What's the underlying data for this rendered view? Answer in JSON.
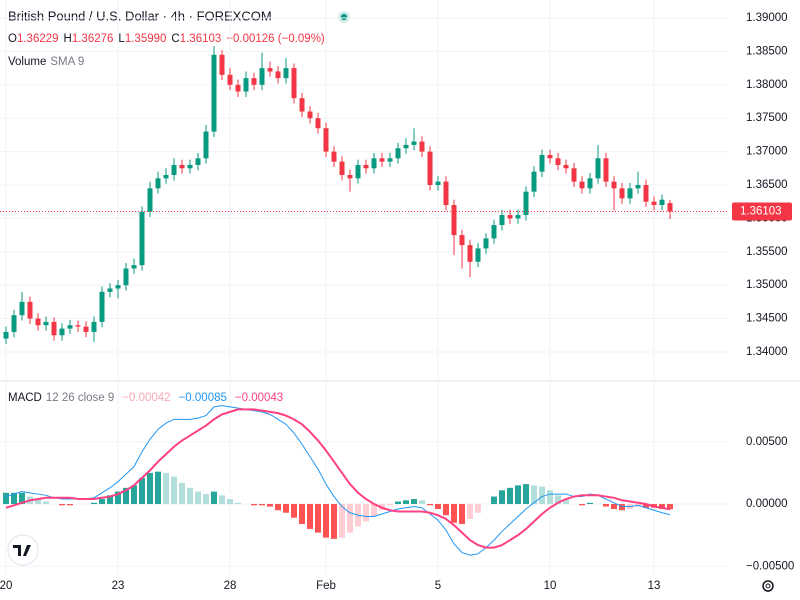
{
  "chart_data": [
    {
      "type": "candlestick",
      "title": "British Pound / U.S. Dollar · 4h · FOREXCOM",
      "ohlc": [
        {
          "key": "O",
          "value": "1.36229"
        },
        {
          "key": "H",
          "value": "1.36276"
        },
        {
          "key": "L",
          "value": "1.35990"
        },
        {
          "key": "C",
          "value": "1.36103"
        }
      ],
      "change": "−0.00126 (−0.09%)",
      "volume": {
        "name": "Volume",
        "params": "SMA 9"
      },
      "categories": [
        "20",
        null,
        null,
        null,
        null,
        null,
        null,
        null,
        null,
        null,
        null,
        null,
        null,
        null,
        "23",
        null,
        null,
        null,
        null,
        null,
        null,
        null,
        null,
        null,
        null,
        null,
        null,
        null,
        "28",
        null,
        null,
        null,
        null,
        null,
        null,
        null,
        null,
        null,
        null,
        null,
        "Feb",
        null,
        null,
        null,
        null,
        null,
        null,
        null,
        null,
        null,
        null,
        null,
        null,
        null,
        "5",
        null,
        null,
        null,
        null,
        null,
        null,
        null,
        null,
        null,
        null,
        null,
        null,
        null,
        "10",
        null,
        null,
        null,
        null,
        null,
        null,
        null,
        null,
        null,
        null,
        null,
        null,
        "13",
        null,
        null
      ],
      "open": [
        1.342,
        1.343,
        1.3455,
        1.3475,
        1.345,
        1.344,
        1.3445,
        1.3425,
        1.3435,
        1.344,
        1.3438,
        1.343,
        1.3445,
        1.349,
        1.3495,
        1.35,
        1.3525,
        1.353,
        1.361,
        1.3645,
        1.366,
        1.3665,
        1.368,
        1.3675,
        1.368,
        1.369,
        1.373,
        1.3845,
        1.3815,
        1.38,
        1.379,
        1.381,
        1.38,
        1.3825,
        1.382,
        1.381,
        1.3825,
        1.378,
        1.376,
        1.375,
        1.3735,
        1.37,
        1.3685,
        1.3665,
        1.366,
        1.368,
        1.3675,
        1.369,
        1.3685,
        1.369,
        1.3705,
        1.371,
        1.3715,
        1.37,
        1.365,
        1.3655,
        1.362,
        1.3575,
        1.356,
        1.3535,
        1.3555,
        1.357,
        1.359,
        1.3605,
        1.36,
        1.3605,
        1.364,
        1.367,
        1.3695,
        1.369,
        1.368,
        1.3675,
        1.3655,
        1.3645,
        1.366,
        1.369,
        1.3655,
        1.3645,
        1.363,
        1.3645,
        1.365,
        1.3625,
        1.362,
        1.36229
      ],
      "high": [
        1.3438,
        1.3463,
        1.349,
        1.3483,
        1.3458,
        1.3453,
        1.3452,
        1.3443,
        1.3448,
        1.3447,
        1.3446,
        1.3453,
        1.3498,
        1.3503,
        1.3508,
        1.3533,
        1.354,
        1.3618,
        1.3655,
        1.367,
        1.3675,
        1.369,
        1.3688,
        1.3688,
        1.3698,
        1.374,
        1.3858,
        1.3852,
        1.3825,
        1.3808,
        1.382,
        1.3818,
        1.3848,
        1.3835,
        1.3828,
        1.384,
        1.3832,
        1.3788,
        1.3768,
        1.3758,
        1.3743,
        1.3708,
        1.3693,
        1.3673,
        1.3688,
        1.3688,
        1.3698,
        1.3698,
        1.3698,
        1.3713,
        1.372,
        1.3735,
        1.3723,
        1.3708,
        1.3663,
        1.3663,
        1.3628,
        1.3583,
        1.3568,
        1.3563,
        1.3578,
        1.3598,
        1.3613,
        1.3613,
        1.3613,
        1.3648,
        1.3678,
        1.3703,
        1.3703,
        1.3698,
        1.3688,
        1.3683,
        1.3663,
        1.3668,
        1.371,
        1.3698,
        1.3663,
        1.3653,
        1.3653,
        1.367,
        1.3658,
        1.3633,
        1.3636,
        1.36276
      ],
      "low": [
        1.3412,
        1.3422,
        1.3447,
        1.3442,
        1.3432,
        1.3432,
        1.3417,
        1.3417,
        1.3427,
        1.343,
        1.3422,
        1.3415,
        1.3437,
        1.3482,
        1.348,
        1.3492,
        1.3517,
        1.3522,
        1.3602,
        1.3637,
        1.3652,
        1.3657,
        1.3667,
        1.3667,
        1.3672,
        1.3682,
        1.3722,
        1.3807,
        1.3792,
        1.3782,
        1.3782,
        1.3792,
        1.3792,
        1.3812,
        1.3802,
        1.3802,
        1.3772,
        1.3752,
        1.3742,
        1.3727,
        1.3692,
        1.3677,
        1.3657,
        1.364,
        1.3652,
        1.3667,
        1.3667,
        1.3677,
        1.3677,
        1.3682,
        1.3697,
        1.3702,
        1.3692,
        1.3642,
        1.3642,
        1.3612,
        1.3545,
        1.3525,
        1.3512,
        1.3527,
        1.3547,
        1.3562,
        1.3582,
        1.3592,
        1.3592,
        1.3597,
        1.3632,
        1.3662,
        1.3682,
        1.3672,
        1.3667,
        1.3647,
        1.3637,
        1.3637,
        1.3652,
        1.3647,
        1.3612,
        1.3622,
        1.3622,
        1.3637,
        1.3617,
        1.3612,
        1.3612,
        1.3599
      ],
      "close": [
        1.343,
        1.3455,
        1.3475,
        1.345,
        1.344,
        1.3445,
        1.3425,
        1.3435,
        1.344,
        1.3438,
        1.343,
        1.3445,
        1.349,
        1.3495,
        1.35,
        1.3525,
        1.353,
        1.361,
        1.3645,
        1.366,
        1.3665,
        1.368,
        1.3675,
        1.368,
        1.369,
        1.373,
        1.3845,
        1.3815,
        1.38,
        1.379,
        1.381,
        1.38,
        1.3825,
        1.382,
        1.381,
        1.3825,
        1.378,
        1.376,
        1.375,
        1.3735,
        1.37,
        1.3685,
        1.3665,
        1.366,
        1.368,
        1.3675,
        1.369,
        1.3685,
        1.369,
        1.3705,
        1.371,
        1.3715,
        1.37,
        1.365,
        1.3655,
        1.362,
        1.3575,
        1.356,
        1.3535,
        1.3555,
        1.357,
        1.359,
        1.3605,
        1.36,
        1.3605,
        1.364,
        1.367,
        1.3695,
        1.369,
        1.368,
        1.3675,
        1.3655,
        1.3645,
        1.366,
        1.369,
        1.3655,
        1.3645,
        1.363,
        1.3645,
        1.365,
        1.3625,
        1.362,
        1.3628,
        1.36103
      ],
      "up_color": "#089981",
      "down_color": "#f23645",
      "last_price": {
        "value": 1.36103,
        "label": "1.36103"
      },
      "ylim": [
        1.3358,
        1.3927
      ],
      "yticks": [
        {
          "value": 1.34,
          "label": "1.34000"
        },
        {
          "value": 1.345,
          "label": "1.34500"
        },
        {
          "value": 1.35,
          "label": "1.35000"
        },
        {
          "value": 1.355,
          "label": "1.35500"
        },
        {
          "value": 1.36,
          "label": "1.36000"
        },
        {
          "value": 1.365,
          "label": "1.36500"
        },
        {
          "value": 1.37,
          "label": "1.37000"
        },
        {
          "value": 1.375,
          "label": "1.37500"
        },
        {
          "value": 1.38,
          "label": "1.38000"
        },
        {
          "value": 1.385,
          "label": "1.38500"
        },
        {
          "value": 1.39,
          "label": "1.39000"
        }
      ],
      "grid": true
    },
    {
      "type": "macd",
      "name": "MACD",
      "params": "12 26 close 9",
      "histogram": {
        "value_label": "−0.00042",
        "color": "#f7a9b4",
        "colors": [
          "#26a69a",
          "#b2dfdb",
          "#ff5252",
          "#ffcdd2"
        ],
        "values": [
          0.0009,
          0.0009,
          0.0009,
          0.0006,
          0.0004,
          0.0002,
          0.0,
          -0.0001,
          -0.0001,
          0.0,
          0.0,
          0.0001,
          0.0004,
          0.0007,
          0.001,
          0.0013,
          0.0015,
          0.0021,
          0.0025,
          0.0026,
          0.0025,
          0.0022,
          0.0017,
          0.0013,
          0.001,
          0.0008,
          0.001,
          0.0007,
          0.0004,
          0.0001,
          0.0,
          -0.0001,
          -0.0001,
          -0.0002,
          -0.0005,
          -0.0007,
          -0.0011,
          -0.0016,
          -0.002,
          -0.0023,
          -0.0027,
          -0.0028,
          -0.0027,
          -0.0023,
          -0.0018,
          -0.0014,
          -0.001,
          -0.0005,
          -0.0001,
          0.0002,
          0.0003,
          0.0004,
          0.0003,
          -0.0001,
          -0.0004,
          -0.0009,
          -0.0015,
          -0.0016,
          -0.0012,
          -0.0007,
          0.0,
          0.0006,
          0.0011,
          0.0013,
          0.0015,
          0.0016,
          0.0015,
          0.0014,
          0.0011,
          0.0007,
          0.0004,
          0.0,
          -0.0001,
          0.0001,
          0.0,
          -0.0002,
          -0.0004,
          -0.0005,
          -0.0004,
          -0.0002,
          -0.0003,
          -0.0003,
          -0.0004,
          -0.00042
        ]
      },
      "macd": {
        "value_label": "−0.00085",
        "color": "#2196f3",
        "values": [
          0.0006,
          0.0008,
          0.001,
          0.0009,
          0.0008,
          0.0007,
          0.0005,
          0.0004,
          0.0004,
          0.0004,
          0.0004,
          0.0005,
          0.0009,
          0.0013,
          0.0018,
          0.0024,
          0.003,
          0.0042,
          0.0052,
          0.006,
          0.0065,
          0.0068,
          0.0068,
          0.0068,
          0.0069,
          0.0071,
          0.0078,
          0.0079,
          0.0078,
          0.0077,
          0.0076,
          0.0075,
          0.0074,
          0.0072,
          0.0068,
          0.0064,
          0.0057,
          0.0048,
          0.0038,
          0.0028,
          0.0016,
          0.0006,
          -0.0002,
          -0.0007,
          -0.0009,
          -0.001,
          -0.001,
          -0.0008,
          -0.0006,
          -0.0004,
          -0.0003,
          -0.0002,
          -0.0003,
          -0.0008,
          -0.0013,
          -0.0021,
          -0.0032,
          -0.0039,
          -0.0041,
          -0.004,
          -0.0035,
          -0.0029,
          -0.0022,
          -0.0016,
          -0.001,
          -0.0004,
          0.0001,
          0.0006,
          0.0008,
          0.0008,
          0.0008,
          0.0006,
          0.0006,
          0.0008,
          0.0007,
          0.0004,
          0.0001,
          -0.0002,
          -0.0002,
          -0.0001,
          -0.0003,
          -0.0005,
          -0.0007,
          -0.00085
        ]
      },
      "signal": {
        "value_label": "−0.00043",
        "color": "#ff4081",
        "values": [
          -0.0003,
          -0.0001,
          0.0001,
          0.0003,
          0.0004,
          0.0005,
          0.0005,
          0.0005,
          0.0005,
          0.0004,
          0.0004,
          0.0004,
          0.0005,
          0.0006,
          0.0008,
          0.0011,
          0.0015,
          0.0021,
          0.0027,
          0.0034,
          0.004,
          0.0046,
          0.0051,
          0.0055,
          0.0059,
          0.0063,
          0.0068,
          0.0072,
          0.0074,
          0.0076,
          0.0076,
          0.0076,
          0.0075,
          0.0074,
          0.0073,
          0.0071,
          0.0068,
          0.0064,
          0.0058,
          0.0051,
          0.0043,
          0.0034,
          0.0025,
          0.0016,
          0.0009,
          0.0004,
          0.0,
          -0.0003,
          -0.0005,
          -0.0006,
          -0.0006,
          -0.0006,
          -0.0006,
          -0.0007,
          -0.0009,
          -0.0012,
          -0.0017,
          -0.0023,
          -0.0029,
          -0.0033,
          -0.0035,
          -0.0035,
          -0.0033,
          -0.0029,
          -0.0025,
          -0.002,
          -0.0014,
          -0.0008,
          -0.0003,
          0.0001,
          0.0004,
          0.0006,
          0.0007,
          0.0007,
          0.0007,
          0.0006,
          0.0005,
          0.0003,
          0.0002,
          0.0001,
          0.0,
          -0.0002,
          -0.0003,
          -0.00043
        ]
      },
      "ylim": [
        -0.0057,
        0.0098
      ],
      "yticks": [
        {
          "value": -0.005,
          "label": "−0.00500"
        },
        {
          "value": 0,
          "label": "0.00000"
        },
        {
          "value": 0.005,
          "label": "0.00500"
        }
      ],
      "grid": true
    }
  ]
}
